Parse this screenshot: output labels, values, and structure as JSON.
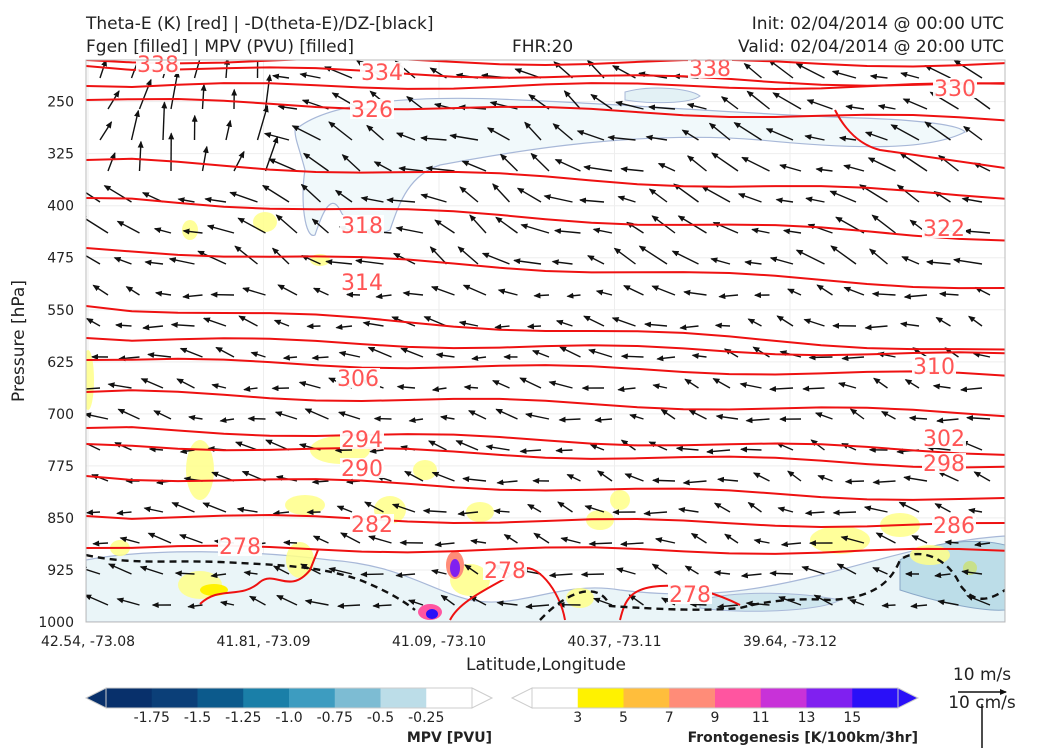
{
  "header": {
    "line1_left": "Theta-E (K) [red] | -D(theta-E)/DZ-[black]",
    "line2_left": "Fgen [filled] | MPV (PVU) [filled]",
    "fhr": "FHR:20",
    "init": "Init: 02/04/2014 @ 00:00 UTC",
    "valid": "Valid: 02/04/2014 @ 20:00 UTC"
  },
  "chart_data": {
    "type": "cross-section",
    "ylabel": "Pressure [hPa]",
    "xlabel": "Latitude,Longitude",
    "y_ticks": [
      250,
      325,
      400,
      475,
      550,
      625,
      700,
      775,
      850,
      925,
      1000
    ],
    "ylim": [
      1000,
      190
    ],
    "x_ticks": [
      "42.54, -73.08",
      "41.81, -73.09",
      "41.09, -73.10",
      "40.37, -73.11",
      "39.64, -73.12"
    ],
    "theta_e_contours": [
      {
        "value": 338,
        "color": "#ee1111",
        "labels": [
          "338",
          "338"
        ]
      },
      {
        "value": 334,
        "color": "#ee1111",
        "labels": [
          "334"
        ]
      },
      {
        "value": 330,
        "color": "#ee1111",
        "labels": [
          "330"
        ]
      },
      {
        "value": 326,
        "color": "#ee1111",
        "labels": [
          "326"
        ]
      },
      {
        "value": 322,
        "color": "#ee1111",
        "labels": [
          "322"
        ]
      },
      {
        "value": 318,
        "color": "#ee1111",
        "labels": [
          "318"
        ]
      },
      {
        "value": 314,
        "color": "#ee1111",
        "labels": [
          "314"
        ]
      },
      {
        "value": 310,
        "color": "#ee1111",
        "labels": [
          "310"
        ]
      },
      {
        "value": 306,
        "color": "#ee1111",
        "labels": [
          "306"
        ]
      },
      {
        "value": 302,
        "color": "#ee1111",
        "labels": [
          "302"
        ]
      },
      {
        "value": 298,
        "color": "#ee1111",
        "labels": [
          "298"
        ]
      },
      {
        "value": 294,
        "color": "#ee1111",
        "labels": [
          "294"
        ]
      },
      {
        "value": 290,
        "color": "#ee1111",
        "labels": [
          "290"
        ]
      },
      {
        "value": 286,
        "color": "#ee1111",
        "labels": [
          "286"
        ]
      },
      {
        "value": 282,
        "color": "#ee1111",
        "labels": [
          "282"
        ]
      },
      {
        "value": 278,
        "color": "#ee1111",
        "labels": [
          "278",
          "278",
          "278"
        ]
      }
    ],
    "mpv_colorbar": {
      "title": "MPV [PVU]",
      "ticks": [
        "-1.75",
        "-1.5",
        "-1.25",
        "-1.0",
        "-0.75",
        "-0.5",
        "-0.25"
      ],
      "colors": [
        "#08306b",
        "#0b3f78",
        "#0c5a8c",
        "#1a7fa8",
        "#3d9cc0",
        "#7dbcd3",
        "#bcdde8",
        "#ffffff"
      ]
    },
    "fgen_colorbar": {
      "title": "Frontogenesis [K/100km/3hr]",
      "ticks": [
        "3",
        "5",
        "7",
        "9",
        "11",
        "13",
        "15"
      ],
      "colors": [
        "#ffffff",
        "#fff200",
        "#ffbe3c",
        "#ff8c78",
        "#ff55a0",
        "#c832d8",
        "#8020f0",
        "#2a10f8"
      ]
    },
    "reference_vectors": [
      "10 m/s",
      "10 cm/s"
    ]
  }
}
